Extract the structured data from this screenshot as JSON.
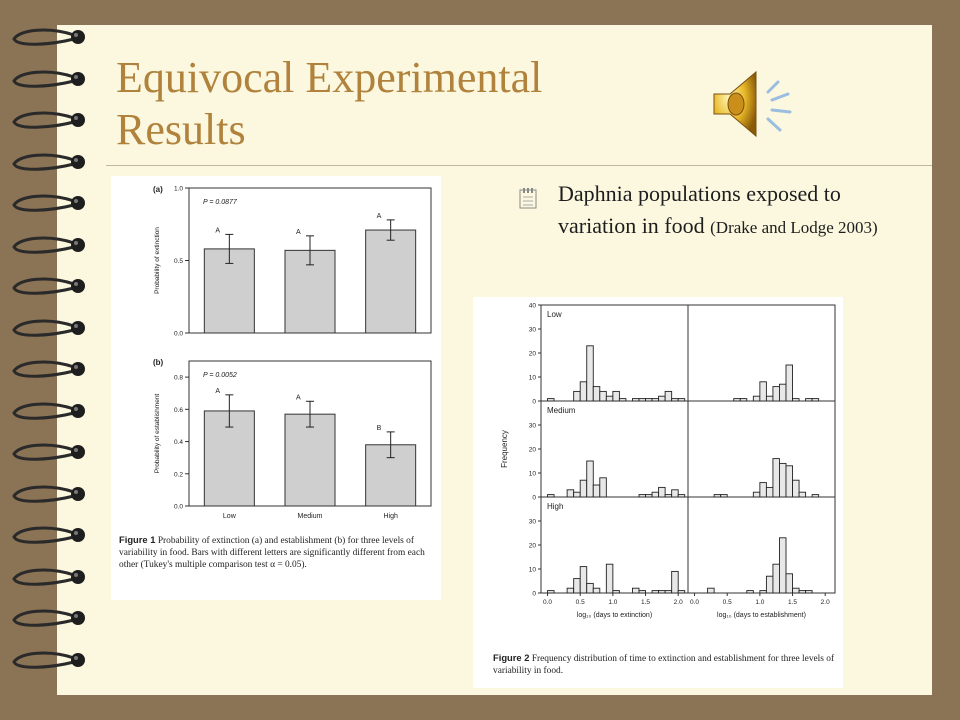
{
  "slide": {
    "title_line1": "Equivocal Experimental",
    "title_line2": "Results",
    "bullet": {
      "text": "Daphnia populations exposed to variation in food",
      "citation": "(Drake and Lodge 2003)",
      "icon": "4"
    },
    "audio_icon": "speaker-icon",
    "colors": {
      "title": "#b0823c",
      "background": "#fbf8df",
      "frame": "#8b7355"
    }
  },
  "figure1": {
    "caption_label": "Figure 1",
    "caption_text": "Probability of extinction (a) and establishment (b) for three levels of variability in food. Bars with different letters are significantly different from each other (Tukey's multiple comparison test α = 0.05)."
  },
  "figure2": {
    "caption_label": "Figure 2",
    "caption_text": "Frequency distribution of time to extinction and establishment for three levels of variability in food."
  },
  "chart_data": [
    {
      "type": "bar",
      "panel": "(a)",
      "annotation": "P = 0.0877",
      "ylabel": "Probability of extinction",
      "categories": [
        "Low",
        "Medium",
        "High"
      ],
      "values": [
        0.58,
        0.57,
        0.71
      ],
      "errors": [
        0.1,
        0.1,
        0.07
      ],
      "letters": [
        "A",
        "A",
        "A"
      ],
      "ylim": [
        0,
        1.0
      ],
      "yticks": [
        "0.0",
        "0.5",
        "1.0"
      ]
    },
    {
      "type": "bar",
      "panel": "(b)",
      "annotation": "P = 0.0052",
      "ylabel": "Probability of establishment",
      "categories": [
        "Low",
        "Medium",
        "High"
      ],
      "values": [
        0.59,
        0.57,
        0.38
      ],
      "errors": [
        0.1,
        0.08,
        0.08
      ],
      "letters": [
        "A",
        "A",
        "B"
      ],
      "ylim": [
        0,
        0.9
      ],
      "yticks": [
        "0.0",
        "0.2",
        "0.4",
        "0.6",
        "0.8"
      ]
    },
    {
      "type": "bar",
      "subtype": "histogram-grid",
      "ylabel": "Frequency",
      "xlabels": [
        "log₁₀ (days to extinction)",
        "log₁₀ (days to establishment)"
      ],
      "xticks": [
        "0.0",
        "0.5",
        "1.0",
        "1.5",
        "2.0"
      ],
      "ylim": [
        0,
        40
      ],
      "yticks": [
        "0",
        "10",
        "20",
        "30",
        "40"
      ],
      "rows": [
        "Low",
        "Medium",
        "High"
      ],
      "bin_width": 0.1,
      "panels": [
        {
          "row": "Low",
          "col": "extinction",
          "bins": [
            0.0,
            0.4,
            0.5,
            0.6,
            0.7,
            0.8,
            0.9,
            1.0,
            1.1,
            1.3,
            1.4,
            1.5,
            1.6,
            1.7,
            1.8,
            1.9,
            2.0
          ],
          "counts": [
            1,
            4,
            8,
            23,
            6,
            4,
            2,
            4,
            1,
            1,
            1,
            1,
            1,
            2,
            4,
            1,
            1
          ]
        },
        {
          "row": "Low",
          "col": "establishment",
          "bins": [
            0.6,
            0.7,
            0.9,
            1.0,
            1.1,
            1.2,
            1.3,
            1.4,
            1.5,
            1.7,
            1.8
          ],
          "counts": [
            1,
            1,
            2,
            8,
            2,
            6,
            7,
            15,
            1,
            1,
            1
          ]
        },
        {
          "row": "Medium",
          "col": "extinction",
          "bins": [
            0.0,
            0.3,
            0.4,
            0.5,
            0.6,
            0.7,
            0.8,
            1.4,
            1.5,
            1.6,
            1.7,
            1.8,
            1.9,
            2.0
          ],
          "counts": [
            1,
            3,
            2,
            7,
            15,
            5,
            8,
            1,
            1,
            2,
            4,
            1,
            3,
            1
          ]
        },
        {
          "row": "Medium",
          "col": "establishment",
          "bins": [
            0.3,
            0.4,
            0.9,
            1.0,
            1.1,
            1.2,
            1.3,
            1.4,
            1.5,
            1.6,
            1.8
          ],
          "counts": [
            1,
            1,
            2,
            6,
            4,
            16,
            14,
            13,
            7,
            2,
            1
          ]
        },
        {
          "row": "High",
          "col": "extinction",
          "bins": [
            0.0,
            0.3,
            0.4,
            0.5,
            0.6,
            0.7,
            0.9,
            1.0,
            1.3,
            1.4,
            1.6,
            1.7,
            1.8,
            1.9,
            2.0
          ],
          "counts": [
            1,
            2,
            6,
            11,
            4,
            2,
            12,
            1,
            2,
            1,
            1,
            1,
            1,
            9,
            1
          ]
        },
        {
          "row": "High",
          "col": "establishment",
          "bins": [
            0.2,
            0.8,
            1.0,
            1.1,
            1.2,
            1.3,
            1.4,
            1.5,
            1.6,
            1.7
          ],
          "counts": [
            2,
            1,
            1,
            7,
            12,
            23,
            8,
            2,
            1,
            1
          ]
        }
      ]
    }
  ]
}
